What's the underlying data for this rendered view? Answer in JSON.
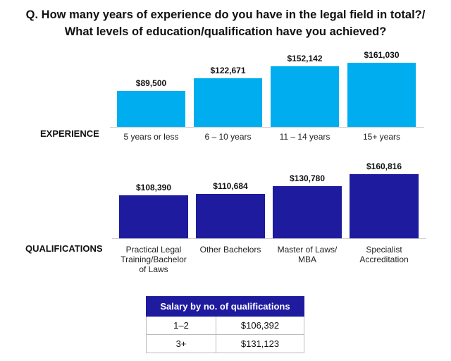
{
  "title": [
    "Q. How many years of experience do you have in the legal field in total?/",
    "What levels of education/qualification have you achieved?"
  ],
  "chart_data": [
    {
      "type": "bar",
      "label": "EXPERIENCE",
      "color": "#00aeef",
      "categories": [
        "5 years or less",
        "6 – 10 years",
        "11 – 14 years",
        "15+ years"
      ],
      "values": [
        89500,
        122671,
        152142,
        161030
      ],
      "value_labels": [
        "$89,500",
        "$122,671",
        "$152,142",
        "$161,030"
      ]
    },
    {
      "type": "bar",
      "label": "QUALIFICATIONS",
      "color": "#1e1b9f",
      "categories": [
        "Practical Legal Training/Bachelor of Laws",
        "Other Bachelors",
        "Master of Laws/ MBA",
        "Specialist Accreditation"
      ],
      "values": [
        108390,
        110684,
        130780,
        160816
      ],
      "value_labels": [
        "$108,390",
        "$110,684",
        "$130,780",
        "$160,816"
      ]
    }
  ],
  "table": {
    "header": "Salary by no. of qualifications",
    "rows": [
      [
        "1–2",
        "$106,392"
      ],
      [
        "3+",
        "$131,123"
      ]
    ]
  }
}
